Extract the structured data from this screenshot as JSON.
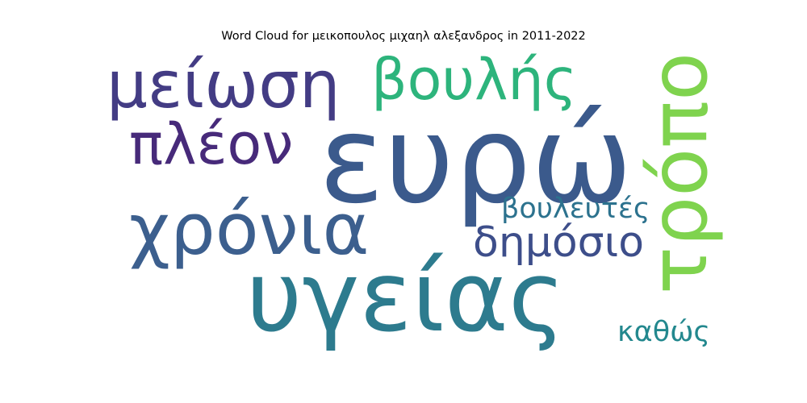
{
  "chart_data": {
    "type": "wordcloud",
    "title": "Word Cloud for μεικοπουλος μιχαηλ αλεξανδρος in 2011-2022",
    "words": [
      {
        "text": "ευρώ",
        "color": "#3b5a8c"
      },
      {
        "text": "υγείας",
        "color": "#2d7b8e"
      },
      {
        "text": "χρόνια",
        "color": "#3c5f8e"
      },
      {
        "text": "τρόπο",
        "color": "#7fd34e"
      },
      {
        "text": "μείωση",
        "color": "#433c84"
      },
      {
        "text": "βουλής",
        "color": "#2db47c"
      },
      {
        "text": "πλέον",
        "color": "#472a7a"
      },
      {
        "text": "δημόσιο",
        "color": "#3d4e8a"
      },
      {
        "text": "βουλευτές",
        "color": "#2c728e"
      },
      {
        "text": "καθώς",
        "color": "#23888e"
      }
    ]
  }
}
